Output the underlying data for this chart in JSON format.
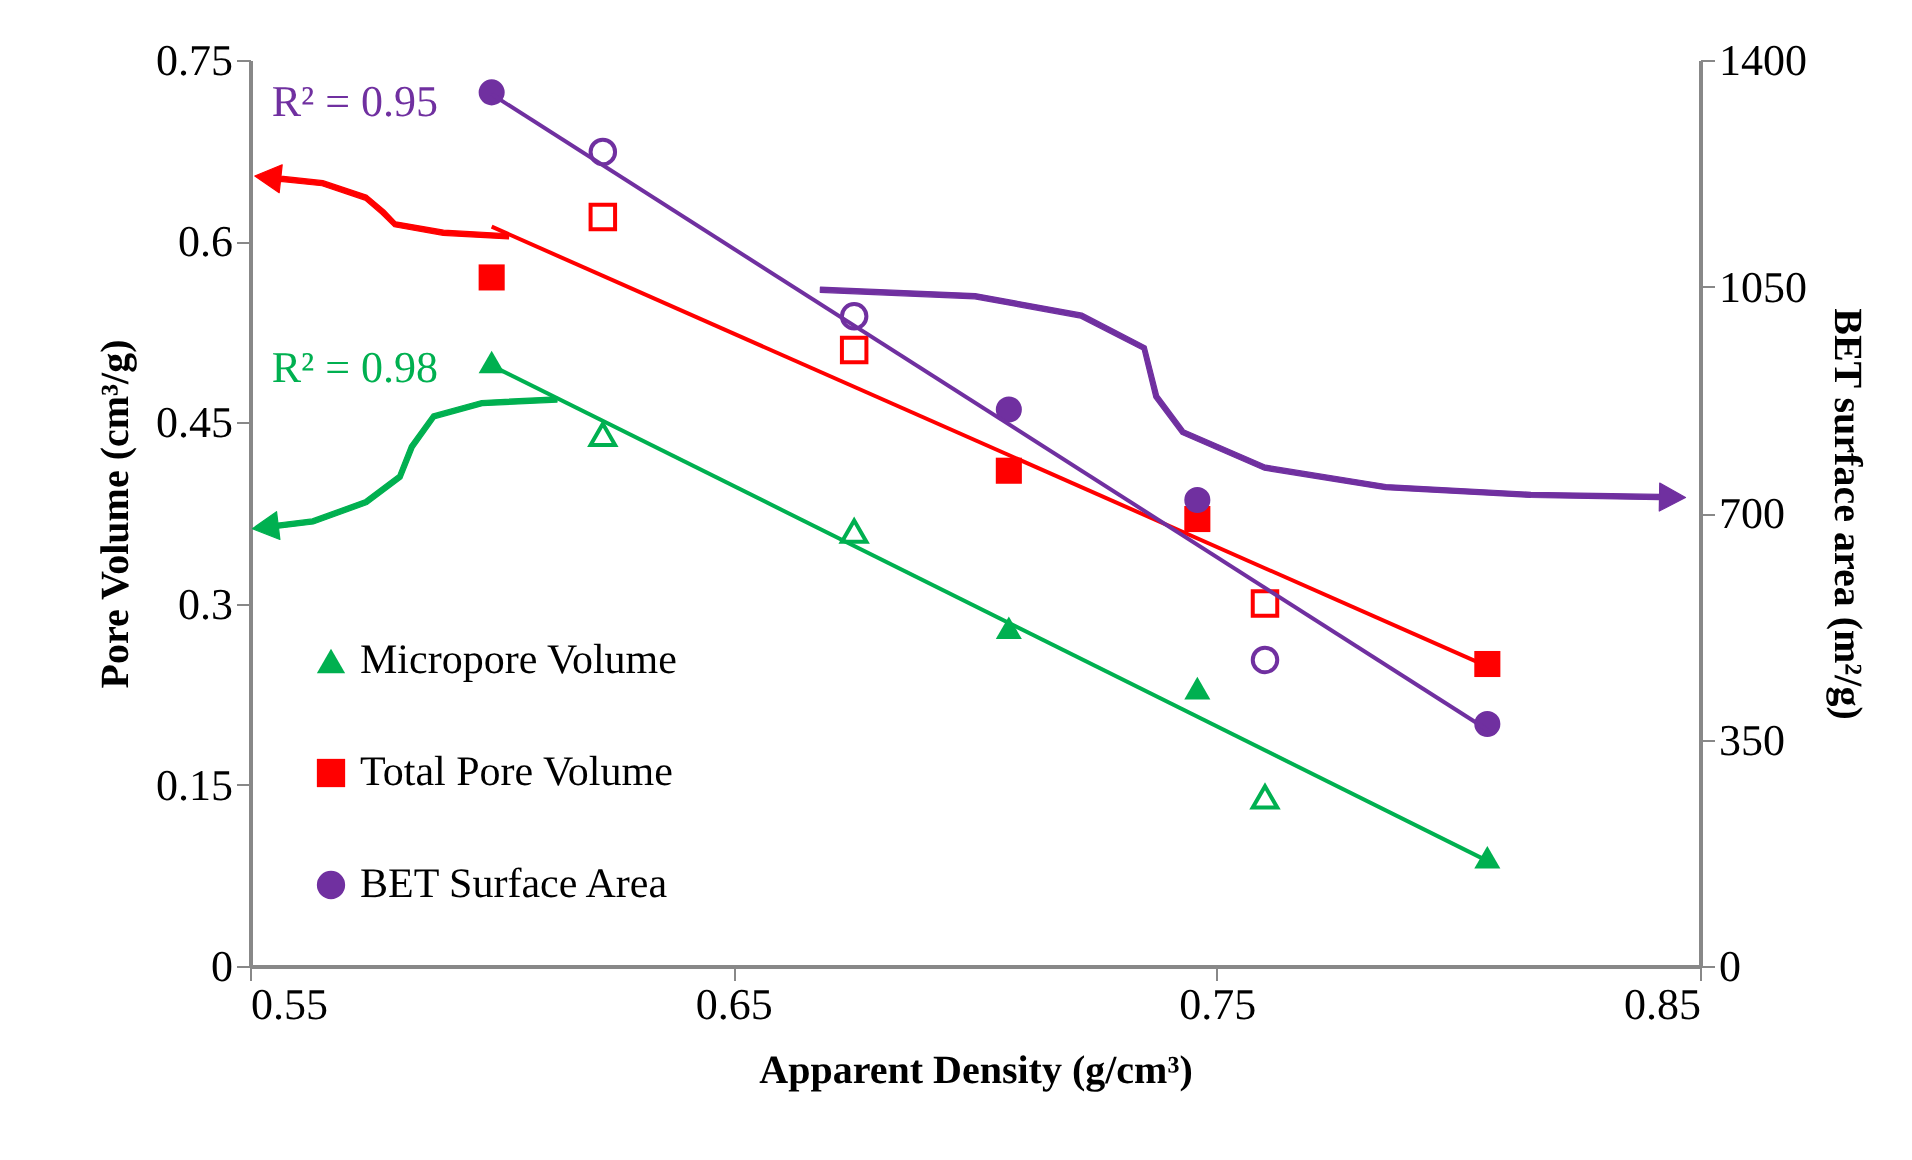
{
  "chart_data": {
    "type": "scatter",
    "xlabel": "Apparent Density (g/cm³)",
    "ylabel": "Pore Volume (cm³/g)",
    "y2label": "BET surface area (m²/g)",
    "xlim": [
      0.55,
      0.85
    ],
    "xticks": [
      0.55,
      0.65,
      0.75,
      0.85
    ],
    "ylim": [
      0,
      0.75
    ],
    "yticks": [
      0,
      0.15,
      0.3,
      0.45,
      0.6,
      0.75
    ],
    "y2lim": [
      0,
      1400
    ],
    "y2ticks": [
      0,
      350,
      700,
      1050,
      1400
    ],
    "grid": false,
    "legend": "bottom left",
    "series": [
      {
        "name": "Micropore Volume",
        "color": "#00b050",
        "marker": "triangle",
        "x": [
          0.6,
          0.707,
          0.746,
          0.806
        ],
        "values": [
          0.5,
          0.28,
          0.23,
          0.09
        ]
      },
      {
        "name": "Total Pore Volume",
        "color": "#ff0000",
        "marker": "square",
        "x": [
          0.6,
          0.707,
          0.746,
          0.806
        ],
        "values": [
          0.57,
          0.41,
          0.37,
          0.25
        ]
      },
      {
        "name": "BET Surface Area",
        "color": "#7030a0",
        "marker": "circle",
        "axis": "y2",
        "x": [
          0.6,
          0.707,
          0.746,
          0.806
        ],
        "values": [
          1350,
          860,
          720,
          374
        ]
      },
      {
        "color": "#00b050",
        "marker": "triangle",
        "x": [
          0.623,
          0.675,
          0.76
        ],
        "values": [
          0.44,
          0.36,
          0.14
        ]
      },
      {
        "color": "#ff0000",
        "marker": "square",
        "x": [
          0.623,
          0.675,
          0.76
        ],
        "values": [
          0.62,
          0.51,
          0.3
        ]
      },
      {
        "color": "#7030a0",
        "marker": "circle",
        "axis": "y2",
        "x": [
          0.623,
          0.675,
          0.76
        ],
        "values": [
          1258,
          1004,
          473
        ]
      },
      {
        "type": "line",
        "color": "#7030a0",
        "axis": "y2",
        "x": [
          0.6,
          0.806
        ],
        "values": [
          1347,
          365
        ]
      },
      {
        "type": "line",
        "color": "#00b050",
        "x": [
          0.6,
          0.806
        ],
        "values": [
          0.497,
          0.087
        ]
      },
      {
        "type": "line",
        "color": "#ff0000",
        "x": [
          0.6,
          0.806
        ],
        "values": [
          0.612,
          0.248
        ]
      }
    ],
    "annotations": [
      "R² = 0.95",
      "R² = 0.98"
    ]
  }
}
